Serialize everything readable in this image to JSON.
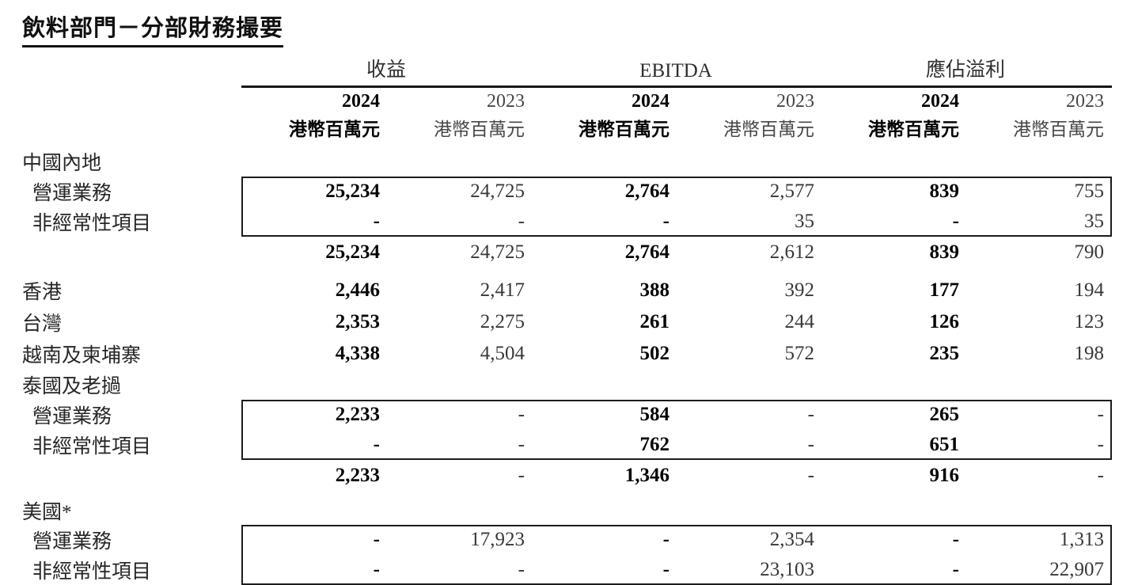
{
  "page": {
    "title": "飲料部門－分部財務撮要"
  },
  "table": {
    "groups": {
      "revenue": "收益",
      "ebitda": "EBITDA",
      "profit": "應佔溢利"
    },
    "years": {
      "current": "2024",
      "prior": "2023"
    },
    "unit": "港幣百萬元",
    "rows": {
      "mainland": {
        "label": "中國內地"
      },
      "mainland_op": {
        "label": "營運業務",
        "v": [
          "25,234",
          "24,725",
          "2,764",
          "2,577",
          "839",
          "755"
        ]
      },
      "mainland_nr": {
        "label": "非經常性項目",
        "v": [
          "-",
          "-",
          "-",
          "35",
          "-",
          "35"
        ]
      },
      "mainland_total": {
        "v": [
          "25,234",
          "24,725",
          "2,764",
          "2,612",
          "839",
          "790"
        ]
      },
      "hongkong": {
        "label": "香港",
        "v": [
          "2,446",
          "2,417",
          "388",
          "392",
          "177",
          "194"
        ]
      },
      "taiwan": {
        "label": "台灣",
        "v": [
          "2,353",
          "2,275",
          "261",
          "244",
          "126",
          "123"
        ]
      },
      "vietnam_cambodia": {
        "label": "越南及柬埔寨",
        "v": [
          "4,338",
          "4,504",
          "502",
          "572",
          "235",
          "198"
        ]
      },
      "thailand_laos": {
        "label": "泰國及老撾"
      },
      "thailand_op": {
        "label": "營運業務",
        "v": [
          "2,233",
          "-",
          "584",
          "-",
          "265",
          "-"
        ]
      },
      "thailand_nr": {
        "label": "非經常性項目",
        "v": [
          "-",
          "-",
          "762",
          "-",
          "651",
          "-"
        ]
      },
      "thailand_total": {
        "v": [
          "2,233",
          "-",
          "1,346",
          "-",
          "916",
          "-"
        ]
      },
      "usa": {
        "label": "美國*"
      },
      "usa_op": {
        "label": "營運業務",
        "v": [
          "-",
          "17,923",
          "-",
          "2,354",
          "-",
          "1,313"
        ]
      },
      "usa_nr": {
        "label": "非經常性項目",
        "v": [
          "-",
          "-",
          "-",
          "23,103",
          "-",
          "22,907"
        ]
      }
    }
  }
}
